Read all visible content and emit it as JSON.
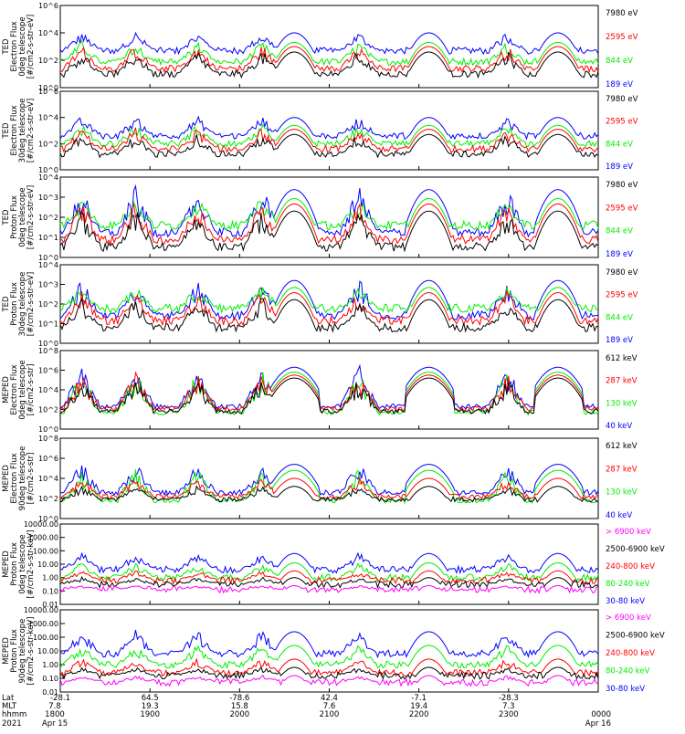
{
  "chart_data": [
    {
      "type": "line",
      "ylabel": [
        "TED",
        "Electron Flux",
        "0deg telescope",
        "[#/cm2-s-str-eV]"
      ],
      "y_ticks": [
        "10^6",
        "10^4",
        "10^2",
        "10^0"
      ],
      "ylog_range": [
        0,
        6
      ],
      "series": [
        {
          "name": "7980 eV",
          "color": "#000000",
          "base": 1,
          "peak": 2.6
        },
        {
          "name": "2595 eV",
          "color": "#ff0000",
          "base": 1.4,
          "peak": 3.0
        },
        {
          "name": "844 eV",
          "color": "#00ee00",
          "base": 1.9,
          "peak": 3.3
        },
        {
          "name": "189 eV",
          "color": "#0000ff",
          "base": 2.7,
          "peak": 4.0
        }
      ]
    },
    {
      "type": "line",
      "ylabel": [
        "TED",
        "Electron Flux",
        "30deg telescope",
        "[#/cm2-s-str-eV]"
      ],
      "y_ticks": [
        "10^6",
        "10^4",
        "10^2",
        "10^0"
      ],
      "ylog_range": [
        0,
        6
      ],
      "series": [
        {
          "name": "7980 eV",
          "color": "#000000",
          "base": 1.2,
          "peak": 2.7
        },
        {
          "name": "2595 eV",
          "color": "#ff0000",
          "base": 1.6,
          "peak": 3.1
        },
        {
          "name": "844 eV",
          "color": "#00ee00",
          "base": 2.0,
          "peak": 3.4
        },
        {
          "name": "189 eV",
          "color": "#0000ff",
          "base": 2.6,
          "peak": 4.0
        }
      ]
    },
    {
      "type": "line",
      "ylabel": [
        "TED",
        "Proton Flux",
        "0deg telescope",
        "[#/cm2-s-str-eV]"
      ],
      "y_ticks": [
        "10^4",
        "10^3",
        "10^2",
        "10^1",
        "10^0"
      ],
      "ylog_range": [
        0,
        4.5
      ],
      "series": [
        {
          "name": "7980 eV",
          "color": "#000000",
          "base": 0.6,
          "peak": 2.6
        },
        {
          "name": "2595 eV",
          "color": "#ff0000",
          "base": 1.0,
          "peak": 3.0
        },
        {
          "name": "844 eV",
          "color": "#00ee00",
          "base": 1.8,
          "peak": 3.3
        },
        {
          "name": "189 eV",
          "color": "#0000ff",
          "base": 1.4,
          "peak": 3.8
        }
      ]
    },
    {
      "type": "line",
      "ylabel": [
        "TED",
        "Proton Flux",
        "30deg telescope",
        "[#/cm2-s-str-eV]"
      ],
      "y_ticks": [
        "10^4",
        "10^3",
        "10^2",
        "10^1",
        "10^0"
      ],
      "ylog_range": [
        0,
        4.5
      ],
      "series": [
        {
          "name": "7980 eV",
          "color": "#000000",
          "base": 0.9,
          "peak": 2.5
        },
        {
          "name": "2595 eV",
          "color": "#ff0000",
          "base": 1.3,
          "peak": 2.9
        },
        {
          "name": "844 eV",
          "color": "#00ee00",
          "base": 2.0,
          "peak": 3.2
        },
        {
          "name": "189 eV",
          "color": "#0000ff",
          "base": 1.6,
          "peak": 3.6
        }
      ]
    },
    {
      "type": "line",
      "ylabel": [
        "MEPED",
        "Electron Flux",
        "0deg telescope",
        "[#/cm2-s-str]"
      ],
      "y_ticks": [
        "10^8",
        "10^6",
        "10^4",
        "10^2",
        "10^0"
      ],
      "ylog_range": [
        0,
        8
      ],
      "series": [
        {
          "name": "612 keV",
          "color": "#000000",
          "base": 1.8,
          "peak": 5.2
        },
        {
          "name": "287 keV",
          "color": "#ff0000",
          "base": 2.1,
          "peak": 5.5
        },
        {
          "name": "130 keV",
          "color": "#00ee00",
          "base": 1.7,
          "peak": 5.8
        },
        {
          "name": "40 keV",
          "color": "#0000ff",
          "base": 2.3,
          "peak": 6.3
        }
      ]
    },
    {
      "type": "line",
      "ylabel": [
        "MEPED",
        "Electron Flux",
        "90deg telescope",
        "[#/cm2-s-str]"
      ],
      "y_ticks": [
        "10^8",
        "10^6",
        "10^4",
        "10^2",
        "10^0"
      ],
      "ylog_range": [
        0,
        8
      ],
      "series": [
        {
          "name": "612 keV",
          "color": "#000000",
          "base": 1.9,
          "peak": 3.2
        },
        {
          "name": "287 keV",
          "color": "#ff0000",
          "base": 2.2,
          "peak": 4.0
        },
        {
          "name": "130 keV",
          "color": "#00ee00",
          "base": 1.8,
          "peak": 4.8
        },
        {
          "name": "40 keV",
          "color": "#0000ff",
          "base": 2.6,
          "peak": 5.4
        }
      ]
    },
    {
      "type": "line",
      "ylabel": [
        "MEPED",
        "Proton Flux",
        "0deg telescope",
        "[#/cm2-s-str-keV]"
      ],
      "y_ticks": [
        "10000.00",
        "1000.00",
        "100.00",
        "10.00",
        "1.00",
        "0.10",
        "0.01"
      ],
      "ylog_range": [
        -2,
        4
      ],
      "series": [
        {
          "name": "> 6900 keV",
          "color": "#ff00ff",
          "base": -0.9,
          "peak": -0.6
        },
        {
          "name": "2500-6900 keV",
          "color": "#000000",
          "base": -0.5,
          "peak": 0.0
        },
        {
          "name": "240-800 keV",
          "color": "#ff0000",
          "base": -0.2,
          "peak": 0.5
        },
        {
          "name": "80-240 keV",
          "color": "#00ee00",
          "base": 0.0,
          "peak": 1.1
        },
        {
          "name": "30-80 keV",
          "color": "#0000ff",
          "base": 0.6,
          "peak": 1.8
        }
      ]
    },
    {
      "type": "line",
      "ylabel": [
        "MEPED",
        "Proton Flux",
        "90deg telescope",
        "[#/cm2-s-str-keV]"
      ],
      "y_ticks": [
        "10000.00",
        "1000.00",
        "100.00",
        "10.00",
        "1.00",
        "0.10",
        "0.01"
      ],
      "ylog_range": [
        -2,
        4
      ],
      "series": [
        {
          "name": "> 6900 keV",
          "color": "#ff00ff",
          "base": -1.3,
          "peak": -0.8
        },
        {
          "name": "2500-6900 keV",
          "color": "#000000",
          "base": -0.8,
          "peak": -0.2
        },
        {
          "name": "240-800 keV",
          "color": "#ff0000",
          "base": -0.6,
          "peak": 0.4
        },
        {
          "name": "80-240 keV",
          "color": "#00ee00",
          "base": 0.0,
          "peak": 1.4
        },
        {
          "name": "30-80 keV",
          "color": "#0000ff",
          "base": 0.8,
          "peak": 2.4
        }
      ]
    }
  ],
  "x_axis": {
    "row_labels": [
      "Lat",
      "MLT",
      "hhmm",
      "2021"
    ],
    "ticks": [
      {
        "lat": "-28.1",
        "mlt": "7.8",
        "hhmm": "1800",
        "date": "Apr 15"
      },
      {
        "lat": "64.5",
        "mlt": "19.3",
        "hhmm": "1900",
        "date": ""
      },
      {
        "lat": "-78.6",
        "mlt": "15.8",
        "hhmm": "2000",
        "date": ""
      },
      {
        "lat": "42.4",
        "mlt": "7.6",
        "hhmm": "2100",
        "date": ""
      },
      {
        "lat": "-7.1",
        "mlt": "19.4",
        "hhmm": "2200",
        "date": ""
      },
      {
        "lat": "-28.3",
        "mlt": "7.3",
        "hhmm": "2300",
        "date": ""
      },
      {
        "lat": "",
        "mlt": "",
        "hhmm": "0000",
        "date": "Apr 16"
      }
    ]
  },
  "events": {
    "broad_bumps": [
      0.435,
      0.685,
      0.925
    ],
    "spiky_regions": [
      0.04,
      0.14,
      0.255,
      0.375,
      0.555,
      0.83
    ]
  },
  "colors": {
    "black": "#000000",
    "red": "#ff0000",
    "green": "#00ee00",
    "blue": "#0000ff",
    "magenta": "#ff00ff"
  }
}
